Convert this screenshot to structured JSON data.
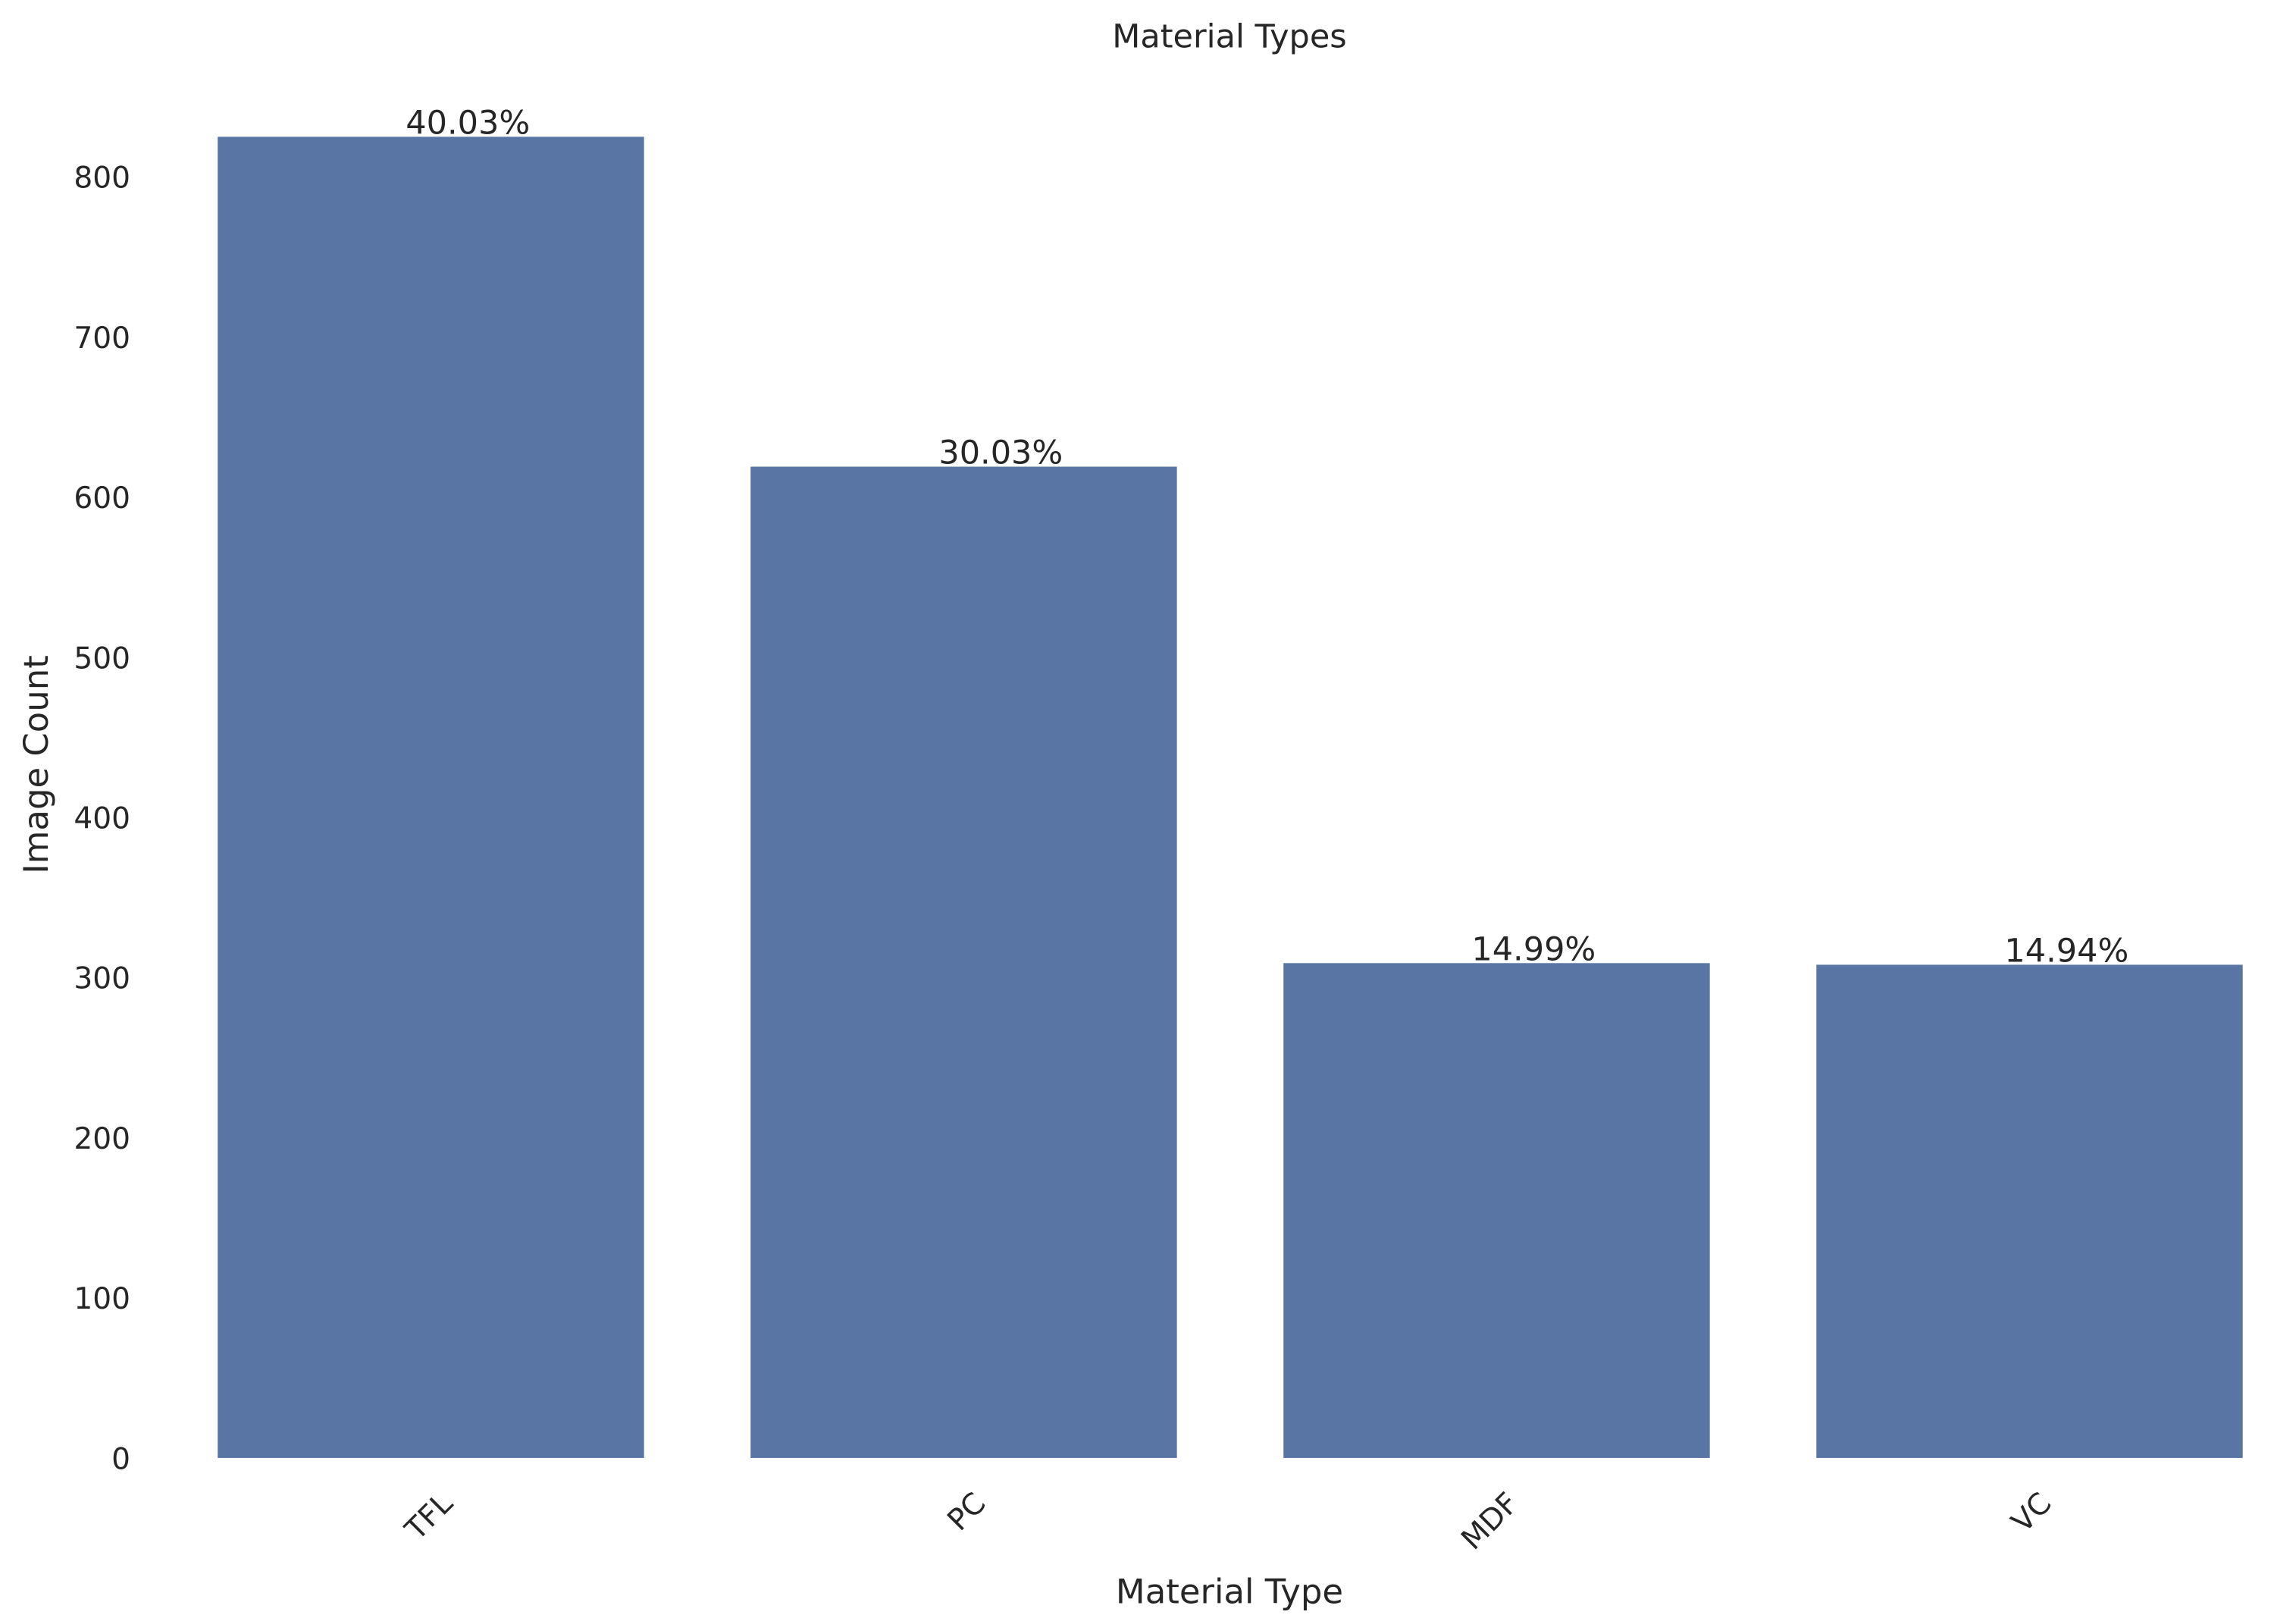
{
  "chart_data": {
    "type": "bar",
    "title": "Material Types",
    "x_label": "Material Type",
    "y_label": "Image Count",
    "categories": [
      "TFL",
      "PC",
      "MDF",
      "VC"
    ],
    "values": [
      825,
      619,
      309,
      308
    ],
    "annotations": [
      "40.03%",
      "30.03%",
      "14.99%",
      "14.94%"
    ],
    "color": "#5975a4",
    "ylim": [
      0,
      866
    ],
    "yticks": [
      0,
      100,
      200,
      300,
      400,
      500,
      600,
      700,
      800
    ],
    "grid": false
  }
}
